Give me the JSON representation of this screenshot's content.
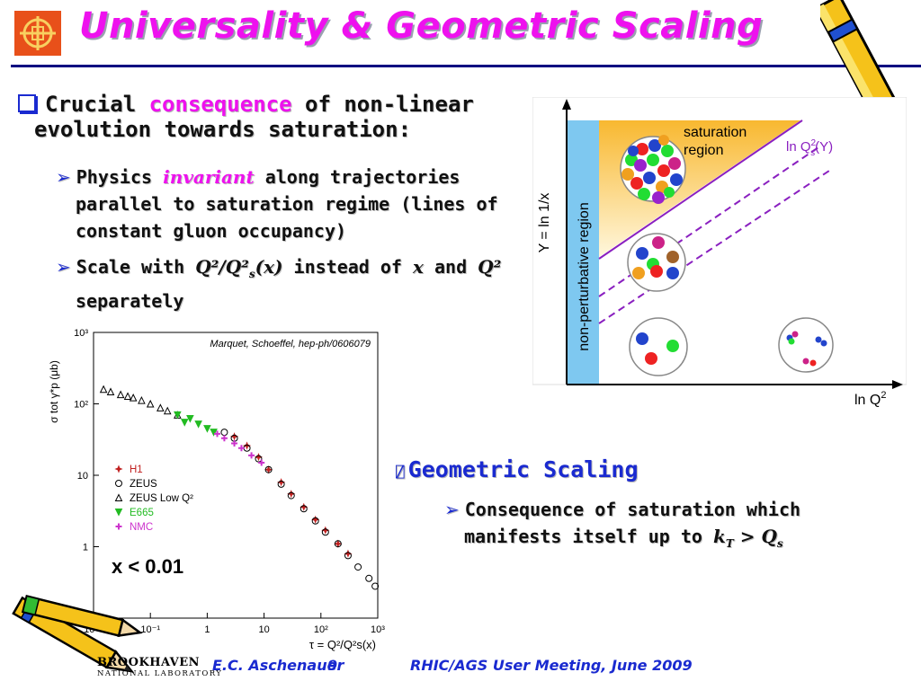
{
  "slide": {
    "title": "Universality & Geometric Scaling"
  },
  "bullets": {
    "main_prefix": "Crucial ",
    "main_highlight": "consequence",
    "main_suffix_line1": " of non-linear",
    "main_line2": "evolution towards saturation:",
    "sub1_prefix": "Physics ",
    "sub1_highlight": "invariant",
    "sub1_line1_suffix": " along trajectories",
    "sub1_line2": "parallel to saturation regime (lines of",
    "sub1_line3": "constant gluon occupancy)",
    "sub2_prefix": "Scale with ",
    "sub2_math_a": "Q²/Q²",
    "sub2_math_sub": "s",
    "sub2_math_b": "(x)",
    "sub2_mid": " instead of ",
    "sub2_math_x": "x",
    "sub2_and": " and ",
    "sub2_math_q": "Q²",
    "sub2_line2": "separately"
  },
  "geometric": {
    "heading": "Geometric Scaling",
    "heading_glyph": "⍁",
    "sub_line1": "Consequence of saturation which",
    "sub_line2_prefix": "manifests itself up to ",
    "kt": "k",
    "kt_sub": "T",
    "gt": " > ",
    "qs": "Q",
    "qs_sub": "s"
  },
  "diagram": {
    "y_axis_label": "Y = ln 1/x",
    "x_axis_label": "ln Q",
    "x_axis_sup": "2",
    "region_nonpert": "non-perturbative region",
    "region_sat_line1": "saturation",
    "region_sat_line2": "region",
    "line_label_prefix": "ln Q",
    "line_label_sup": "2",
    "line_label_sub": "s",
    "line_label_suffix": "(Y)"
  },
  "chart_data": {
    "type": "scatter",
    "annotation": "Marquet, Schoeffel, hep-ph/0606079",
    "xlabel": "τ = Q²/Q²s(x)",
    "ylabel": "σ tot γ*p (μb)",
    "xscale": "log",
    "yscale": "log",
    "xlim": [
      0.01,
      1000
    ],
    "ylim": [
      0.1,
      1000
    ],
    "x_ticks": [
      "10⁻²",
      "10⁻¹",
      "1",
      "10",
      "10²",
      "10³"
    ],
    "y_ticks": [
      "1",
      "10",
      "10²",
      "10³"
    ],
    "cut_label": "x < 0.01",
    "legend_position": "left",
    "series": [
      {
        "name": "H1",
        "marker": "star",
        "color": "#c02020",
        "points": [
          [
            3,
            35
          ],
          [
            5,
            26
          ],
          [
            8,
            18
          ],
          [
            12,
            12
          ],
          [
            20,
            8
          ],
          [
            30,
            5.5
          ],
          [
            50,
            3.6
          ],
          [
            80,
            2.4
          ],
          [
            120,
            1.7
          ],
          [
            200,
            1.1
          ],
          [
            300,
            0.8
          ]
        ]
      },
      {
        "name": "ZEUS",
        "marker": "circle",
        "color": "#000000",
        "points": [
          [
            2,
            40
          ],
          [
            3,
            33
          ],
          [
            5,
            24
          ],
          [
            8,
            17
          ],
          [
            12,
            12
          ],
          [
            20,
            7.5
          ],
          [
            30,
            5.2
          ],
          [
            50,
            3.4
          ],
          [
            80,
            2.3
          ],
          [
            120,
            1.6
          ],
          [
            200,
            1.1
          ],
          [
            300,
            0.75
          ],
          [
            450,
            0.52
          ],
          [
            700,
            0.36
          ],
          [
            900,
            0.28
          ]
        ]
      },
      {
        "name": "ZEUS Low Q²",
        "marker": "triangle",
        "color": "#000000",
        "points": [
          [
            0.015,
            160
          ],
          [
            0.02,
            148
          ],
          [
            0.03,
            135
          ],
          [
            0.04,
            128
          ],
          [
            0.05,
            122
          ],
          [
            0.07,
            112
          ],
          [
            0.1,
            100
          ],
          [
            0.15,
            88
          ],
          [
            0.2,
            80
          ],
          [
            0.3,
            70
          ]
        ]
      },
      {
        "name": "E665",
        "marker": "triangle-down",
        "color": "#22bb22",
        "points": [
          [
            0.3,
            70
          ],
          [
            0.4,
            55
          ],
          [
            0.5,
            62
          ],
          [
            0.7,
            52
          ],
          [
            1,
            45
          ],
          [
            1.3,
            40
          ]
        ]
      },
      {
        "name": "NMC",
        "marker": "plus",
        "color": "#cc33cc",
        "points": [
          [
            1.5,
            38
          ],
          [
            2,
            33
          ],
          [
            3,
            28
          ],
          [
            4,
            24
          ],
          [
            6,
            19
          ],
          [
            9,
            15
          ]
        ]
      }
    ]
  },
  "footer": {
    "lab_line1": "BROOKHAVEN",
    "lab_line2": "NATIONAL LABORATORY",
    "author": "E.C. Aschenauer",
    "page_number": "9",
    "meeting": "RHIC/AGS User Meeting, June 2009"
  },
  "colors": {
    "title": "#ee11ee",
    "bullet_blue": "#1a2ad0",
    "rule": "#000080",
    "nonpert_region": "#7ec8f0",
    "sat_gradient_top": "#f8b830",
    "sat_line": "#8a20c0"
  }
}
